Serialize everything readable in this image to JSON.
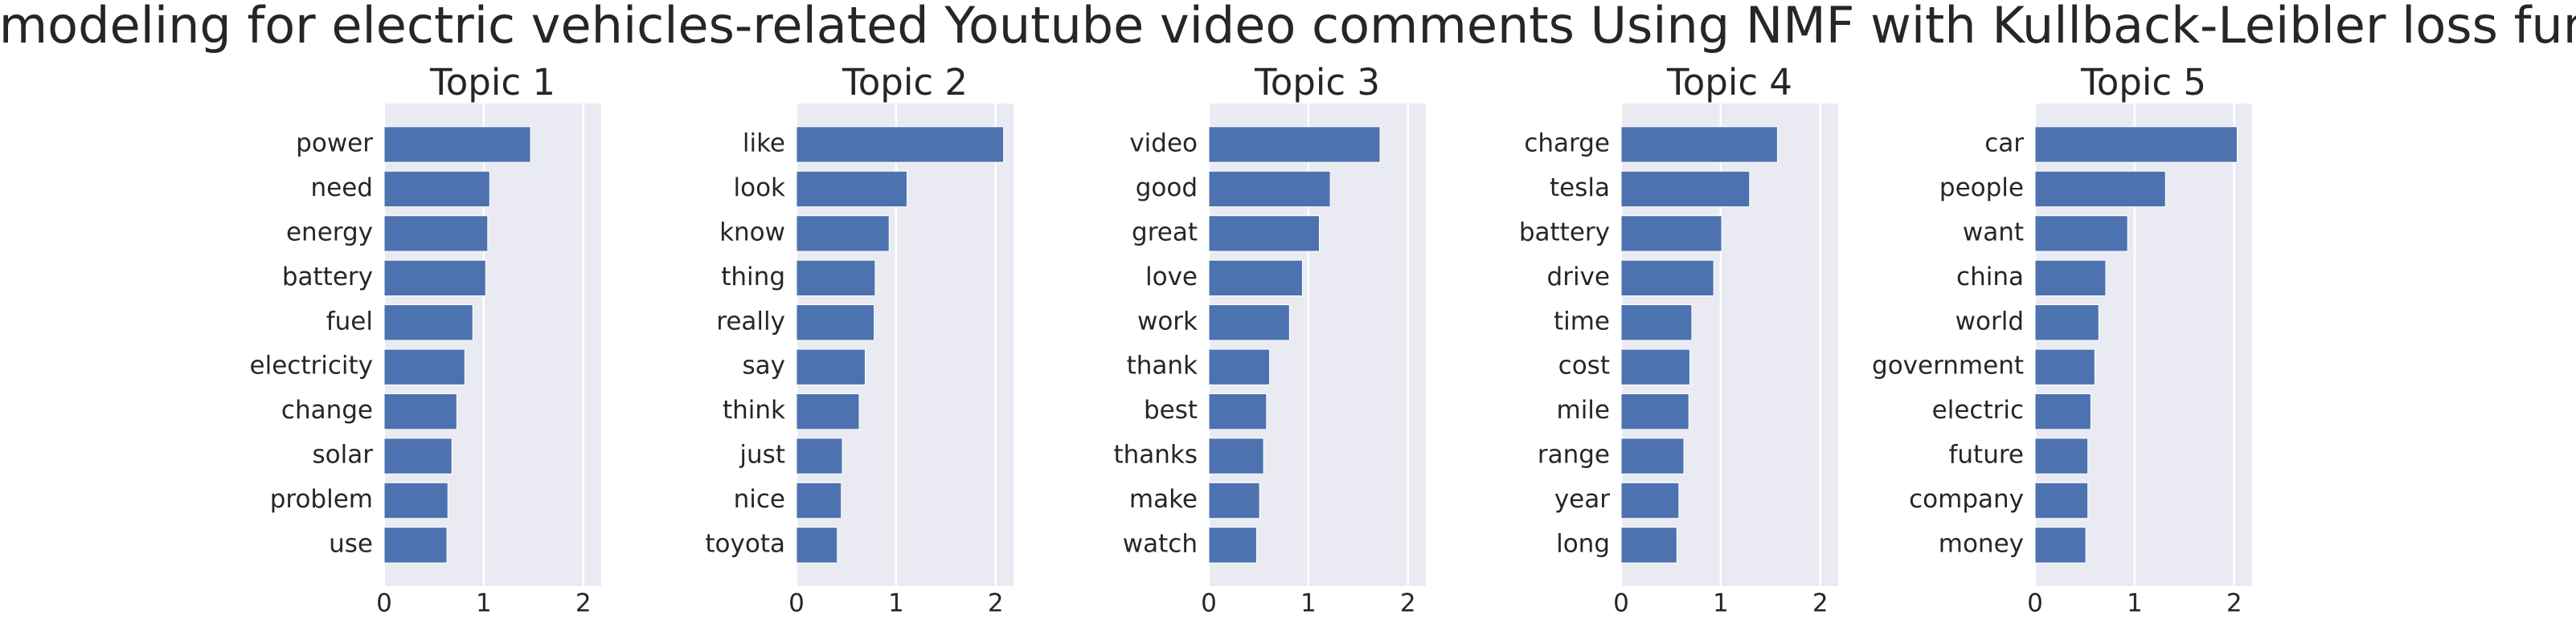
{
  "title": "Topic modeling for electric vehicles-related Youtube video comments Using NMF with Kullback-Leibler loss function",
  "chart_data": [
    {
      "type": "bar",
      "orientation": "horizontal",
      "title": "Topic 1",
      "color": "#4c72b0",
      "grid": true,
      "categories": [
        "power",
        "need",
        "energy",
        "battery",
        "fuel",
        "electricity",
        "change",
        "solar",
        "problem",
        "use"
      ],
      "values": [
        1.47,
        1.06,
        1.04,
        1.02,
        0.89,
        0.81,
        0.73,
        0.68,
        0.64,
        0.63
      ],
      "xlim": [
        0,
        2.18
      ],
      "xticks": [
        0,
        1,
        2
      ]
    },
    {
      "type": "bar",
      "orientation": "horizontal",
      "title": "Topic 2",
      "color": "#4c72b0",
      "grid": true,
      "categories": [
        "like",
        "look",
        "know",
        "thing",
        "really",
        "say",
        "think",
        "just",
        "nice",
        "toyota"
      ],
      "values": [
        2.08,
        1.11,
        0.93,
        0.79,
        0.78,
        0.69,
        0.63,
        0.46,
        0.45,
        0.41
      ],
      "xlim": [
        0,
        2.18
      ],
      "xticks": [
        0,
        1,
        2
      ]
    },
    {
      "type": "bar",
      "orientation": "horizontal",
      "title": "Topic 3",
      "color": "#4c72b0",
      "grid": true,
      "categories": [
        "video",
        "good",
        "great",
        "love",
        "work",
        "thank",
        "best",
        "thanks",
        "make",
        "watch"
      ],
      "values": [
        1.72,
        1.22,
        1.11,
        0.94,
        0.81,
        0.61,
        0.58,
        0.55,
        0.51,
        0.48
      ],
      "xlim": [
        0,
        2.18
      ],
      "xticks": [
        0,
        1,
        2
      ]
    },
    {
      "type": "bar",
      "orientation": "horizontal",
      "title": "Topic 4",
      "color": "#4c72b0",
      "grid": true,
      "categories": [
        "charge",
        "tesla",
        "battery",
        "drive",
        "time",
        "cost",
        "mile",
        "range",
        "year",
        "long"
      ],
      "values": [
        1.57,
        1.29,
        1.01,
        0.93,
        0.71,
        0.69,
        0.68,
        0.63,
        0.58,
        0.56
      ],
      "xlim": [
        0,
        2.18
      ],
      "xticks": [
        0,
        1,
        2
      ]
    },
    {
      "type": "bar",
      "orientation": "horizontal",
      "title": "Topic 5",
      "color": "#4c72b0",
      "grid": true,
      "categories": [
        "car",
        "people",
        "want",
        "china",
        "world",
        "government",
        "electric",
        "future",
        "company",
        "money"
      ],
      "values": [
        2.03,
        1.31,
        0.93,
        0.71,
        0.64,
        0.6,
        0.56,
        0.53,
        0.53,
        0.51
      ],
      "xlim": [
        0,
        2.18
      ],
      "xticks": [
        0,
        1,
        2
      ]
    }
  ]
}
